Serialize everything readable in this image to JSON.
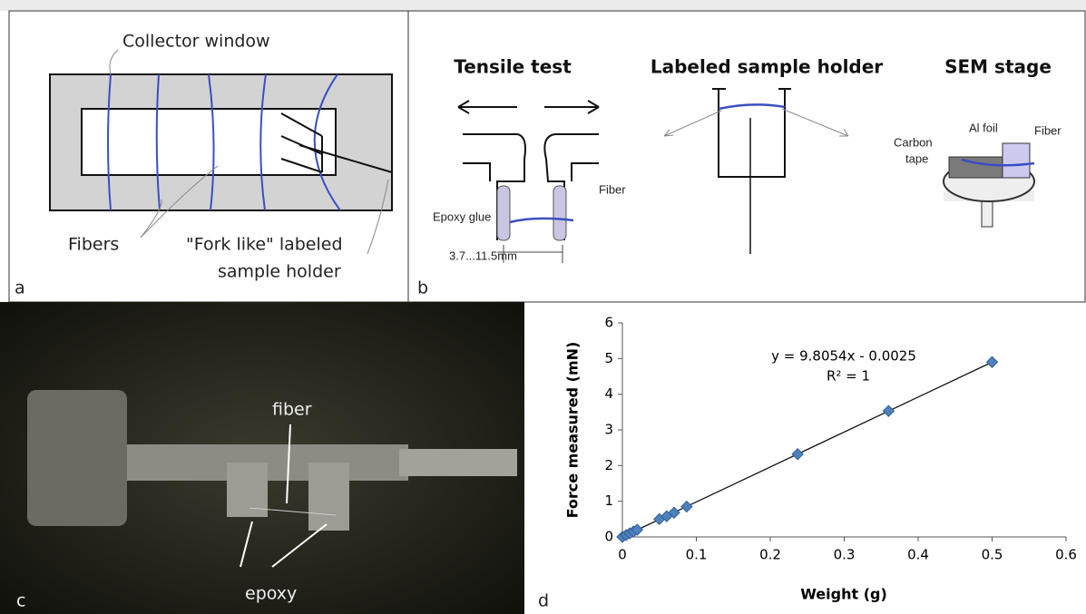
{
  "panel_a": {
    "label": "a",
    "collector_window": "Collector window",
    "fibers": "Fibers",
    "holder_line1": "\"Fork like\" labeled",
    "holder_line2": "sample holder"
  },
  "panel_b": {
    "label": "b",
    "tensile_title": "Tensile test",
    "holder_title": "Labeled sample holder",
    "sem_title": "SEM stage",
    "epoxy_glue": "Epoxy glue",
    "fiber_left": "Fiber",
    "gap": "3.7...11.5mm",
    "carbon": "Carbon",
    "tape": "tape",
    "al_foil": "Al foil",
    "fiber_right": "Fiber"
  },
  "panel_c": {
    "label": "c",
    "fiber": "fiber",
    "epoxy": "epoxy"
  },
  "chart_data": {
    "type": "scatter",
    "panel_label": "d",
    "x_label": "Weight (g)",
    "y_label": "Force measured (mN)",
    "equation": "y = 9.8054x - 0.0025",
    "r_squared": "R² = 1",
    "x": [
      0,
      0.005,
      0.01,
      0.015,
      0.02,
      0.05,
      0.06,
      0.07,
      0.087,
      0.237,
      0.36,
      0.5
    ],
    "values": [
      0,
      0.05,
      0.1,
      0.15,
      0.2,
      0.5,
      0.58,
      0.68,
      0.85,
      2.32,
      3.53,
      4.9
    ],
    "color": "#4f81bd",
    "xlim": [
      0,
      0.6
    ],
    "ylim": [
      0,
      6
    ],
    "xticks": [
      0,
      0.1,
      0.2,
      0.3,
      0.4,
      0.5,
      0.6
    ],
    "yticks": [
      0,
      1,
      2,
      3,
      4,
      5,
      6
    ]
  }
}
